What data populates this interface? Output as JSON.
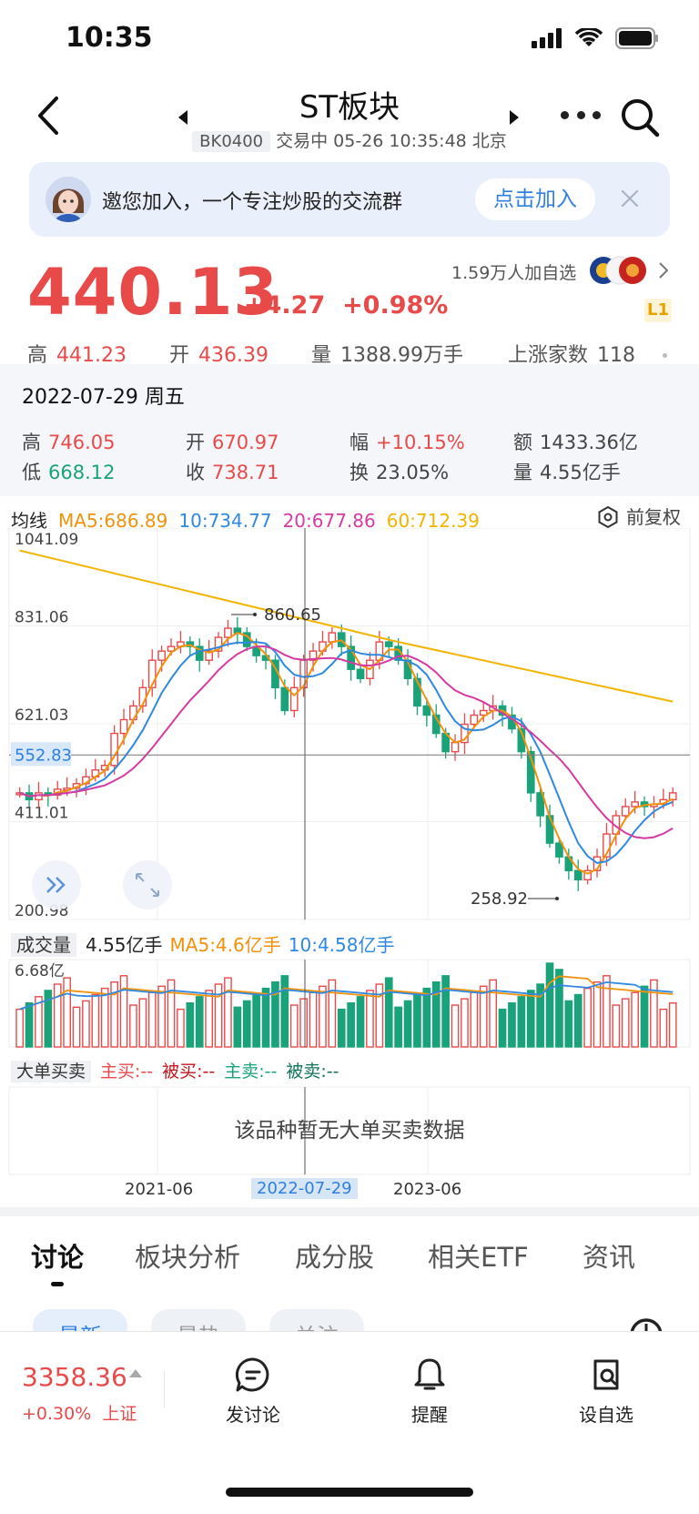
{
  "status": {
    "time": "10:35"
  },
  "header": {
    "title": "ST板块",
    "code": "BK0400",
    "status_line": "交易中 05-26 10:35:48 北京"
  },
  "banner": {
    "text": "邀您加入，一个专注炒股的交流群",
    "button": "点击加入"
  },
  "quote": {
    "price": "440.13",
    "change": "+4.27",
    "change_pct": "+0.98%",
    "followers": "1.59万人加自选",
    "level": "L1",
    "high_label": "高",
    "high": "441.23",
    "open_label": "开",
    "open": "436.39",
    "volume_label": "量",
    "volume": "1388.99万手",
    "risers_label": "上涨家数",
    "risers": "118"
  },
  "detail": {
    "date": "2022-07-29 周五",
    "cells": [
      {
        "label": "高",
        "value": "746.05"
      },
      {
        "label": "开",
        "value": "670.97"
      },
      {
        "label": "幅",
        "value": "+10.15%"
      },
      {
        "label": "额",
        "value": "1433.36亿"
      },
      {
        "label": "低",
        "value": "668.12"
      },
      {
        "label": "收",
        "value": "738.71"
      },
      {
        "label": "换",
        "value": "23.05%"
      },
      {
        "label": "量",
        "value": "4.55亿手"
      }
    ]
  },
  "ma": {
    "label": "均线",
    "ma5": "MA5:686.89",
    "ma10": "10:734.77",
    "ma20": "20:677.86",
    "ma60": "60:712.39",
    "adjust": "前复权"
  },
  "chart_data": {
    "type": "candlestick",
    "y_ticks": [
      "1041.09",
      "831.06",
      "621.03",
      "411.01",
      "200.98"
    ],
    "ylim": [
      200.98,
      1041.09
    ],
    "crosshair_value": "552.83",
    "max_label": "860.65",
    "min_label": "258.92",
    "x_labels": [
      "2021-06",
      "2022-07-29",
      "2023-06"
    ],
    "volume_label": "成交量",
    "volume_value": "4.55亿手",
    "vol_ma5": "MA5:4.6亿手",
    "vol_ma10": "10:4.58亿手",
    "vol_axis_max": "6.68亿",
    "series": [
      {
        "name": "MA5",
        "color": "#f2920c"
      },
      {
        "name": "10",
        "color": "#2f89e0"
      },
      {
        "name": "20",
        "color": "#d63aa3"
      },
      {
        "name": "60",
        "color": "#f3b400"
      }
    ]
  },
  "big_order": {
    "label": "大单买卖",
    "main_buy": "主买:--",
    "passive_buy": "被买:--",
    "main_sell": "主卖:--",
    "passive_sell": "被卖:--",
    "empty_text": "该品种暂无大单买卖数据"
  },
  "tabs": [
    "讨论",
    "板块分析",
    "成分股",
    "相关ETF",
    "资讯"
  ],
  "pills": [
    "最新",
    "最热",
    "关注"
  ],
  "bottom": {
    "index_value": "3358.36",
    "index_change": "+0.30%",
    "index_name": "上证",
    "discuss": "发讨论",
    "alert": "提醒",
    "add_watch": "设自选"
  }
}
